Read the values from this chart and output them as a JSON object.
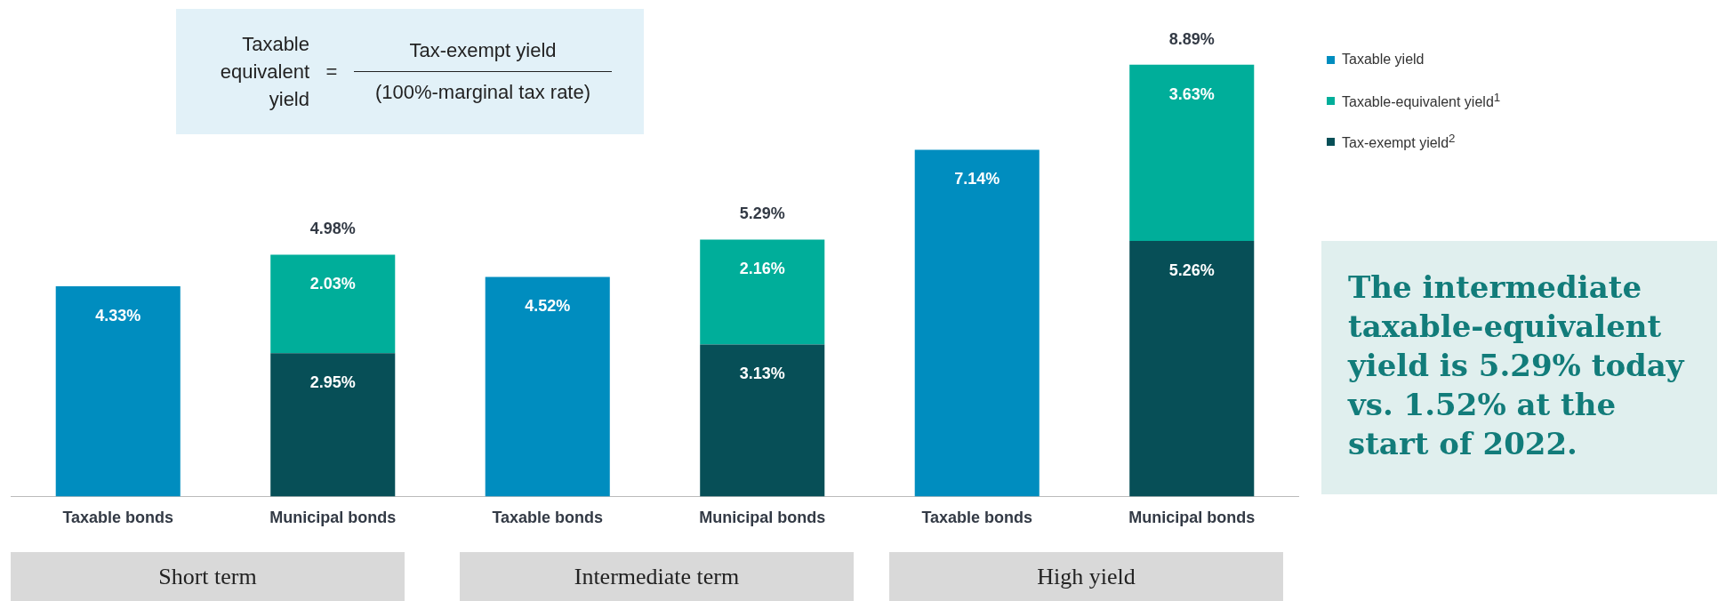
{
  "chart_data": {
    "type": "bar",
    "stacked": true,
    "legend": "right",
    "categories": [
      "Taxable bonds",
      "Municipal bonds",
      "Taxable bonds",
      "Municipal bonds",
      "Taxable bonds",
      "Municipal bonds"
    ],
    "series": [
      {
        "name": "Tax-exempt yield$^{2}$",
        "color": "#074f57",
        "values": [
          null,
          2.95,
          null,
          3.13,
          null,
          5.26
        ],
        "value_labels": [
          null,
          "2.95%",
          null,
          "3.13%",
          null,
          "5.26%"
        ]
      },
      {
        "name": "Taxable-equivalent yield$^{1}$",
        "color": "#00ae9a",
        "values": [
          null,
          2.03,
          null,
          2.16,
          null,
          3.63
        ],
        "value_labels": [
          null,
          "2.03%",
          null,
          "2.16%",
          null,
          "3.63%"
        ]
      },
      {
        "name": "Taxable yield",
        "color": "#008dbf",
        "values": [
          4.33,
          null,
          4.52,
          null,
          7.14,
          null
        ],
        "value_labels": [
          "4.33%",
          null,
          "4.52%",
          null,
          "7.14%",
          null
        ]
      }
    ],
    "totals": [
      null,
      "4.98%",
      null,
      "5.29%",
      null,
      "8.89%"
    ],
    "annotations": [
      "Taxable equivalent yield",
      "=",
      "Tax-exempt yield",
      "(100%-marginal tax rate)",
      "Short term",
      "Intermediate term",
      "High yield",
      "The intermediate taxable-equivalent yield is 5.29% today vs. 1.52% at the start of 2022."
    ]
  }
}
